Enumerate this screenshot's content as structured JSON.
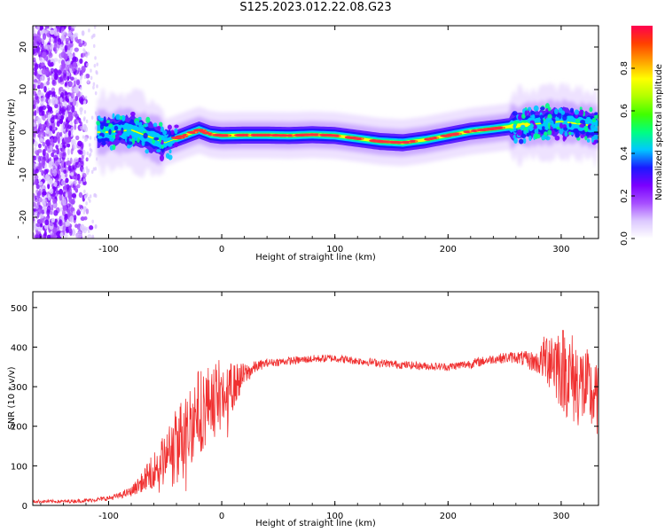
{
  "figure": {
    "title": "S125.2023.012.22.08.G23"
  },
  "chart_data": [
    {
      "type": "heatmap",
      "xlabel": "Height of straight line (km)",
      "ylabel": "Frequency (Hz)",
      "xlim": [
        -167,
        333
      ],
      "ylim": [
        -25,
        25
      ],
      "x_ticks": [
        -100,
        0,
        100,
        200,
        300
      ],
      "y_ticks": [
        -20,
        -10,
        0,
        10,
        20
      ],
      "x_tick_labels": [
        "-100",
        "0",
        "100",
        "200",
        "300"
      ],
      "y_tick_labels": [
        "-20",
        "-10",
        "0",
        "10",
        "20"
      ],
      "ridge": {
        "x": [
          -100,
          -80,
          -60,
          -50,
          -40,
          -30,
          -20,
          -10,
          0,
          20,
          40,
          60,
          80,
          100,
          120,
          140,
          160,
          180,
          200,
          220,
          240,
          260,
          280,
          300,
          320,
          333
        ],
        "frequency": [
          0.0,
          0.5,
          -1.5,
          -2.5,
          -1.5,
          -0.5,
          0.5,
          -0.5,
          -0.8,
          -0.7,
          -0.7,
          -0.8,
          -0.6,
          -0.8,
          -1.5,
          -2.2,
          -2.5,
          -1.8,
          -0.8,
          0.2,
          0.8,
          1.5,
          2.0,
          2.5,
          1.8,
          1.2
        ]
      },
      "colorbar": {
        "label": "Normalized spectral amplitude",
        "range": [
          0.0,
          1.0
        ],
        "ticks": [
          0.0,
          0.2,
          0.4,
          0.6,
          0.8
        ],
        "tick_labels": [
          "0.0",
          "0.2",
          "0.4",
          "0.6",
          "0.8"
        ],
        "colors": [
          "#ffffff",
          "#dcc8ff",
          "#a64dff",
          "#7a00ff",
          "#1a1aff",
          "#00c8ff",
          "#00ff80",
          "#40ff00",
          "#b0ff00",
          "#ffff00",
          "#ffa000",
          "#ff4000",
          "#ff0050"
        ]
      }
    },
    {
      "type": "line",
      "xlabel": "Height of straight line (km)",
      "ylabel": "SNR (10 * v/v)",
      "xlim": [
        -167,
        333
      ],
      "ylim": [
        0,
        540
      ],
      "x_ticks": [
        -100,
        0,
        100,
        200,
        300
      ],
      "y_ticks": [
        0,
        100,
        200,
        300,
        400,
        500
      ],
      "x_tick_labels": [
        "-100",
        "0",
        "100",
        "200",
        "300"
      ],
      "y_tick_labels": [
        "0",
        "100",
        "200",
        "300",
        "400",
        "500"
      ],
      "line_color": "#f03030",
      "x": [
        -167,
        -140,
        -120,
        -100,
        -90,
        -80,
        -70,
        -60,
        -50,
        -40,
        -30,
        -20,
        -10,
        0,
        10,
        20,
        30,
        40,
        60,
        80,
        100,
        120,
        140,
        160,
        180,
        200,
        220,
        240,
        260,
        280,
        290,
        300,
        310,
        320,
        333
      ],
      "snr": [
        10,
        10,
        12,
        18,
        25,
        35,
        60,
        90,
        120,
        160,
        200,
        240,
        260,
        280,
        300,
        330,
        350,
        360,
        365,
        370,
        372,
        365,
        360,
        355,
        352,
        350,
        358,
        370,
        375,
        360,
        380,
        350,
        320,
        300,
        260
      ],
      "snr_spread": [
        4,
        4,
        5,
        6,
        8,
        12,
        25,
        45,
        70,
        90,
        110,
        110,
        100,
        90,
        60,
        30,
        15,
        10,
        10,
        10,
        10,
        10,
        10,
        10,
        10,
        10,
        12,
        12,
        15,
        30,
        90,
        110,
        120,
        110,
        90
      ]
    }
  ]
}
